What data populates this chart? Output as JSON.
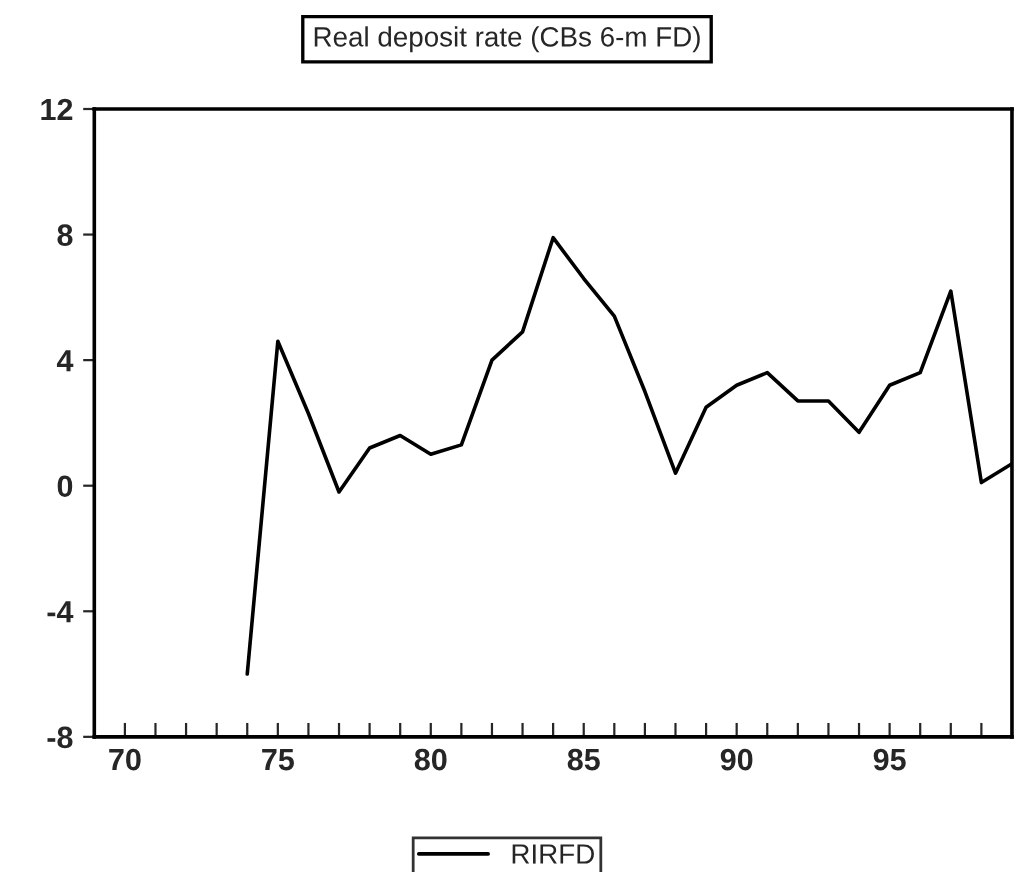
{
  "chart_data": {
    "type": "line",
    "title": "Real deposit rate (CBs 6-m FD)",
    "x": [
      74,
      75,
      76,
      77,
      78,
      79,
      80,
      81,
      82,
      83,
      84,
      85,
      86,
      87,
      88,
      89,
      90,
      91,
      92,
      93,
      94,
      95,
      96,
      97,
      98,
      99
    ],
    "series": [
      {
        "name": "RIRFD",
        "color": "#000000",
        "values": [
          -6.0,
          4.6,
          2.3,
          -0.2,
          1.2,
          1.6,
          1.0,
          1.3,
          4.0,
          4.9,
          7.9,
          6.6,
          5.4,
          3.0,
          0.4,
          2.5,
          3.2,
          3.6,
          2.7,
          2.7,
          1.7,
          3.2,
          3.6,
          6.2,
          0.1,
          0.7
        ]
      }
    ],
    "xlim": [
      69,
      99
    ],
    "xticks": [
      70,
      {
        "value": 71,
        "label": null
      },
      {
        "value": 72,
        "label": null
      },
      {
        "value": 73,
        "label": null
      },
      {
        "value": 74,
        "label": null
      },
      75,
      {
        "value": 76,
        "label": null
      },
      {
        "value": 77,
        "label": null
      },
      {
        "value": 78,
        "label": null
      },
      {
        "value": 79,
        "label": null
      },
      80,
      {
        "value": 81,
        "label": null
      },
      {
        "value": 82,
        "label": null
      },
      {
        "value": 83,
        "label": null
      },
      {
        "value": 84,
        "label": null
      },
      85,
      {
        "value": 86,
        "label": null
      },
      {
        "value": 87,
        "label": null
      },
      {
        "value": 88,
        "label": null
      },
      {
        "value": 89,
        "label": null
      },
      90,
      {
        "value": 91,
        "label": null
      },
      {
        "value": 92,
        "label": null
      },
      {
        "value": 93,
        "label": null
      },
      {
        "value": 94,
        "label": null
      },
      95,
      {
        "value": 96,
        "label": null
      },
      {
        "value": 97,
        "label": null
      },
      {
        "value": 98,
        "label": null
      }
    ],
    "ylim": [
      -8,
      12
    ],
    "yticks": [
      -8,
      -4,
      0,
      4,
      8,
      12
    ],
    "grid": false,
    "legend": "bottom",
    "marker": "none",
    "line_style": "solid"
  }
}
